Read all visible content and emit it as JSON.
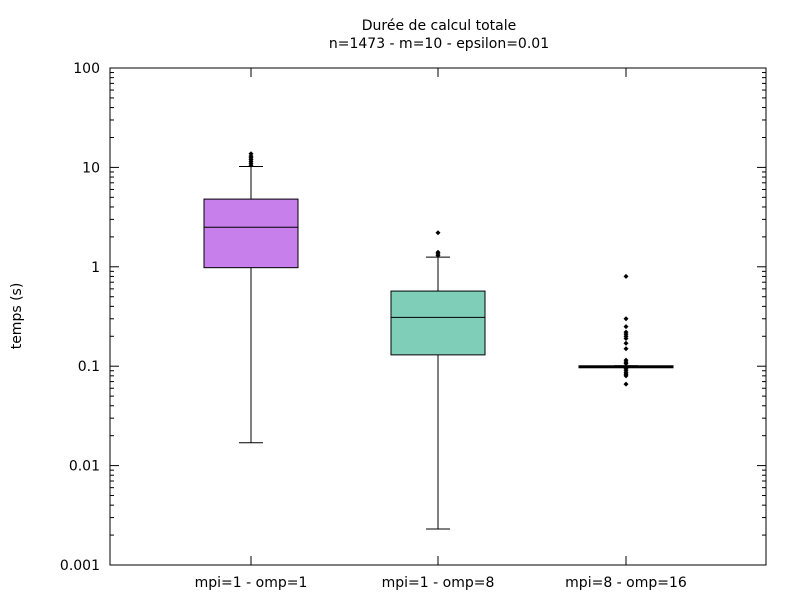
{
  "chart_data": {
    "type": "box",
    "title": "Durée de calcul totale",
    "subtitle": "n=1473 - m=10 - epsilon=0.01",
    "xlabel": "",
    "ylabel": "temps (s)",
    "y_scale": "log",
    "ylim": [
      0.001,
      100
    ],
    "y_ticks": [
      0.001,
      0.01,
      0.1,
      1,
      10,
      100
    ],
    "y_tick_labels": [
      "0.001",
      "0.01",
      "0.1",
      "1",
      "10",
      "100"
    ],
    "grid": false,
    "legend": "none",
    "categories": [
      "mpi=1 - omp=1",
      "mpi=1 - omp=8",
      "mpi=8 - omp=16"
    ],
    "boxes": [
      {
        "category": "mpi=1 - omp=1",
        "color": "#c77feb",
        "whisker_low": 0.017,
        "q1": 0.98,
        "median": 2.5,
        "q3": 4.8,
        "whisker_high": 10.2,
        "outliers": [
          10.5,
          11.0,
          11.5,
          12.0,
          12.5,
          13.0,
          13.7
        ]
      },
      {
        "category": "mpi=1 - omp=8",
        "color": "#7fcfb8",
        "whisker_low": 0.0023,
        "q1": 0.13,
        "median": 0.31,
        "q3": 0.57,
        "whisker_high": 1.25,
        "outliers": [
          1.3,
          1.35,
          1.4,
          2.2
        ]
      },
      {
        "category": "mpi=8 - omp=16",
        "color": "#000000",
        "whisker_low": 0.099,
        "q1": 0.099,
        "median": 0.1,
        "q3": 0.101,
        "whisker_high": 0.101,
        "outliers": [
          0.066,
          0.08,
          0.083,
          0.086,
          0.09,
          0.094,
          0.106,
          0.11,
          0.115,
          0.15,
          0.17,
          0.19,
          0.2,
          0.21,
          0.22,
          0.25,
          0.3,
          0.8
        ]
      }
    ]
  }
}
